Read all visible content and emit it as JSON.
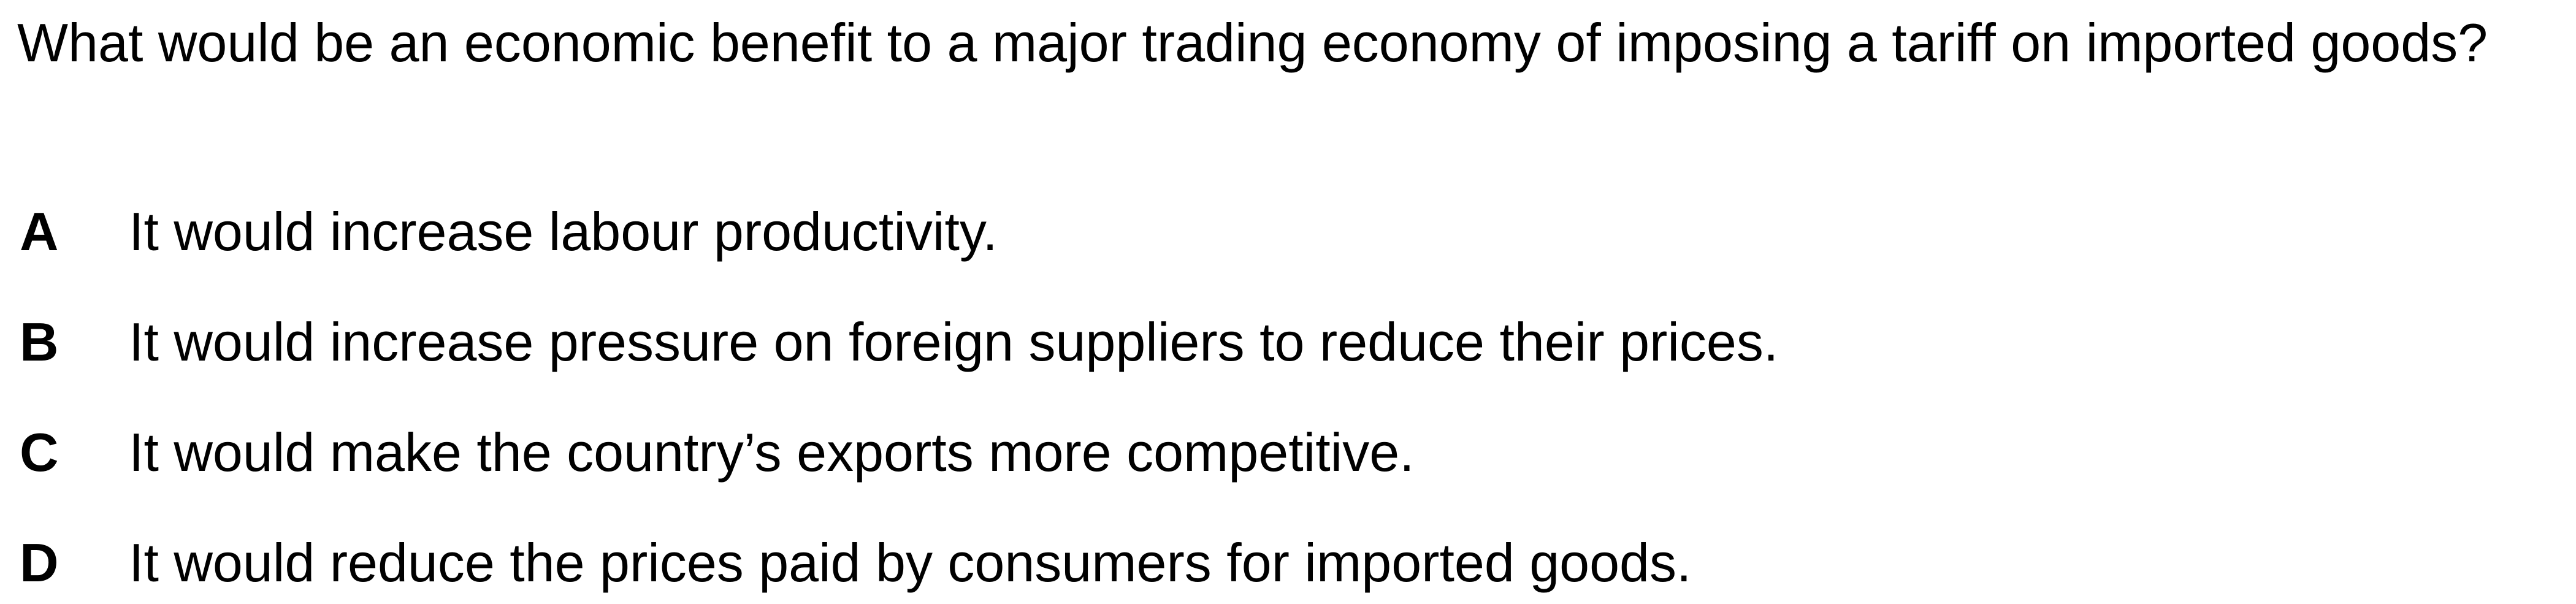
{
  "question": {
    "text": "What would be an economic benefit to a major trading economy of imposing a tariff on imported goods?"
  },
  "options": [
    {
      "letter": "A",
      "text": "It would increase labour productivity."
    },
    {
      "letter": "B",
      "text": "It would increase pressure on foreign suppliers to reduce their prices."
    },
    {
      "letter": "C",
      "text": "It would make the country’s exports more competitive."
    },
    {
      "letter": "D",
      "text": "It would reduce the prices paid by consumers for imported goods."
    }
  ]
}
